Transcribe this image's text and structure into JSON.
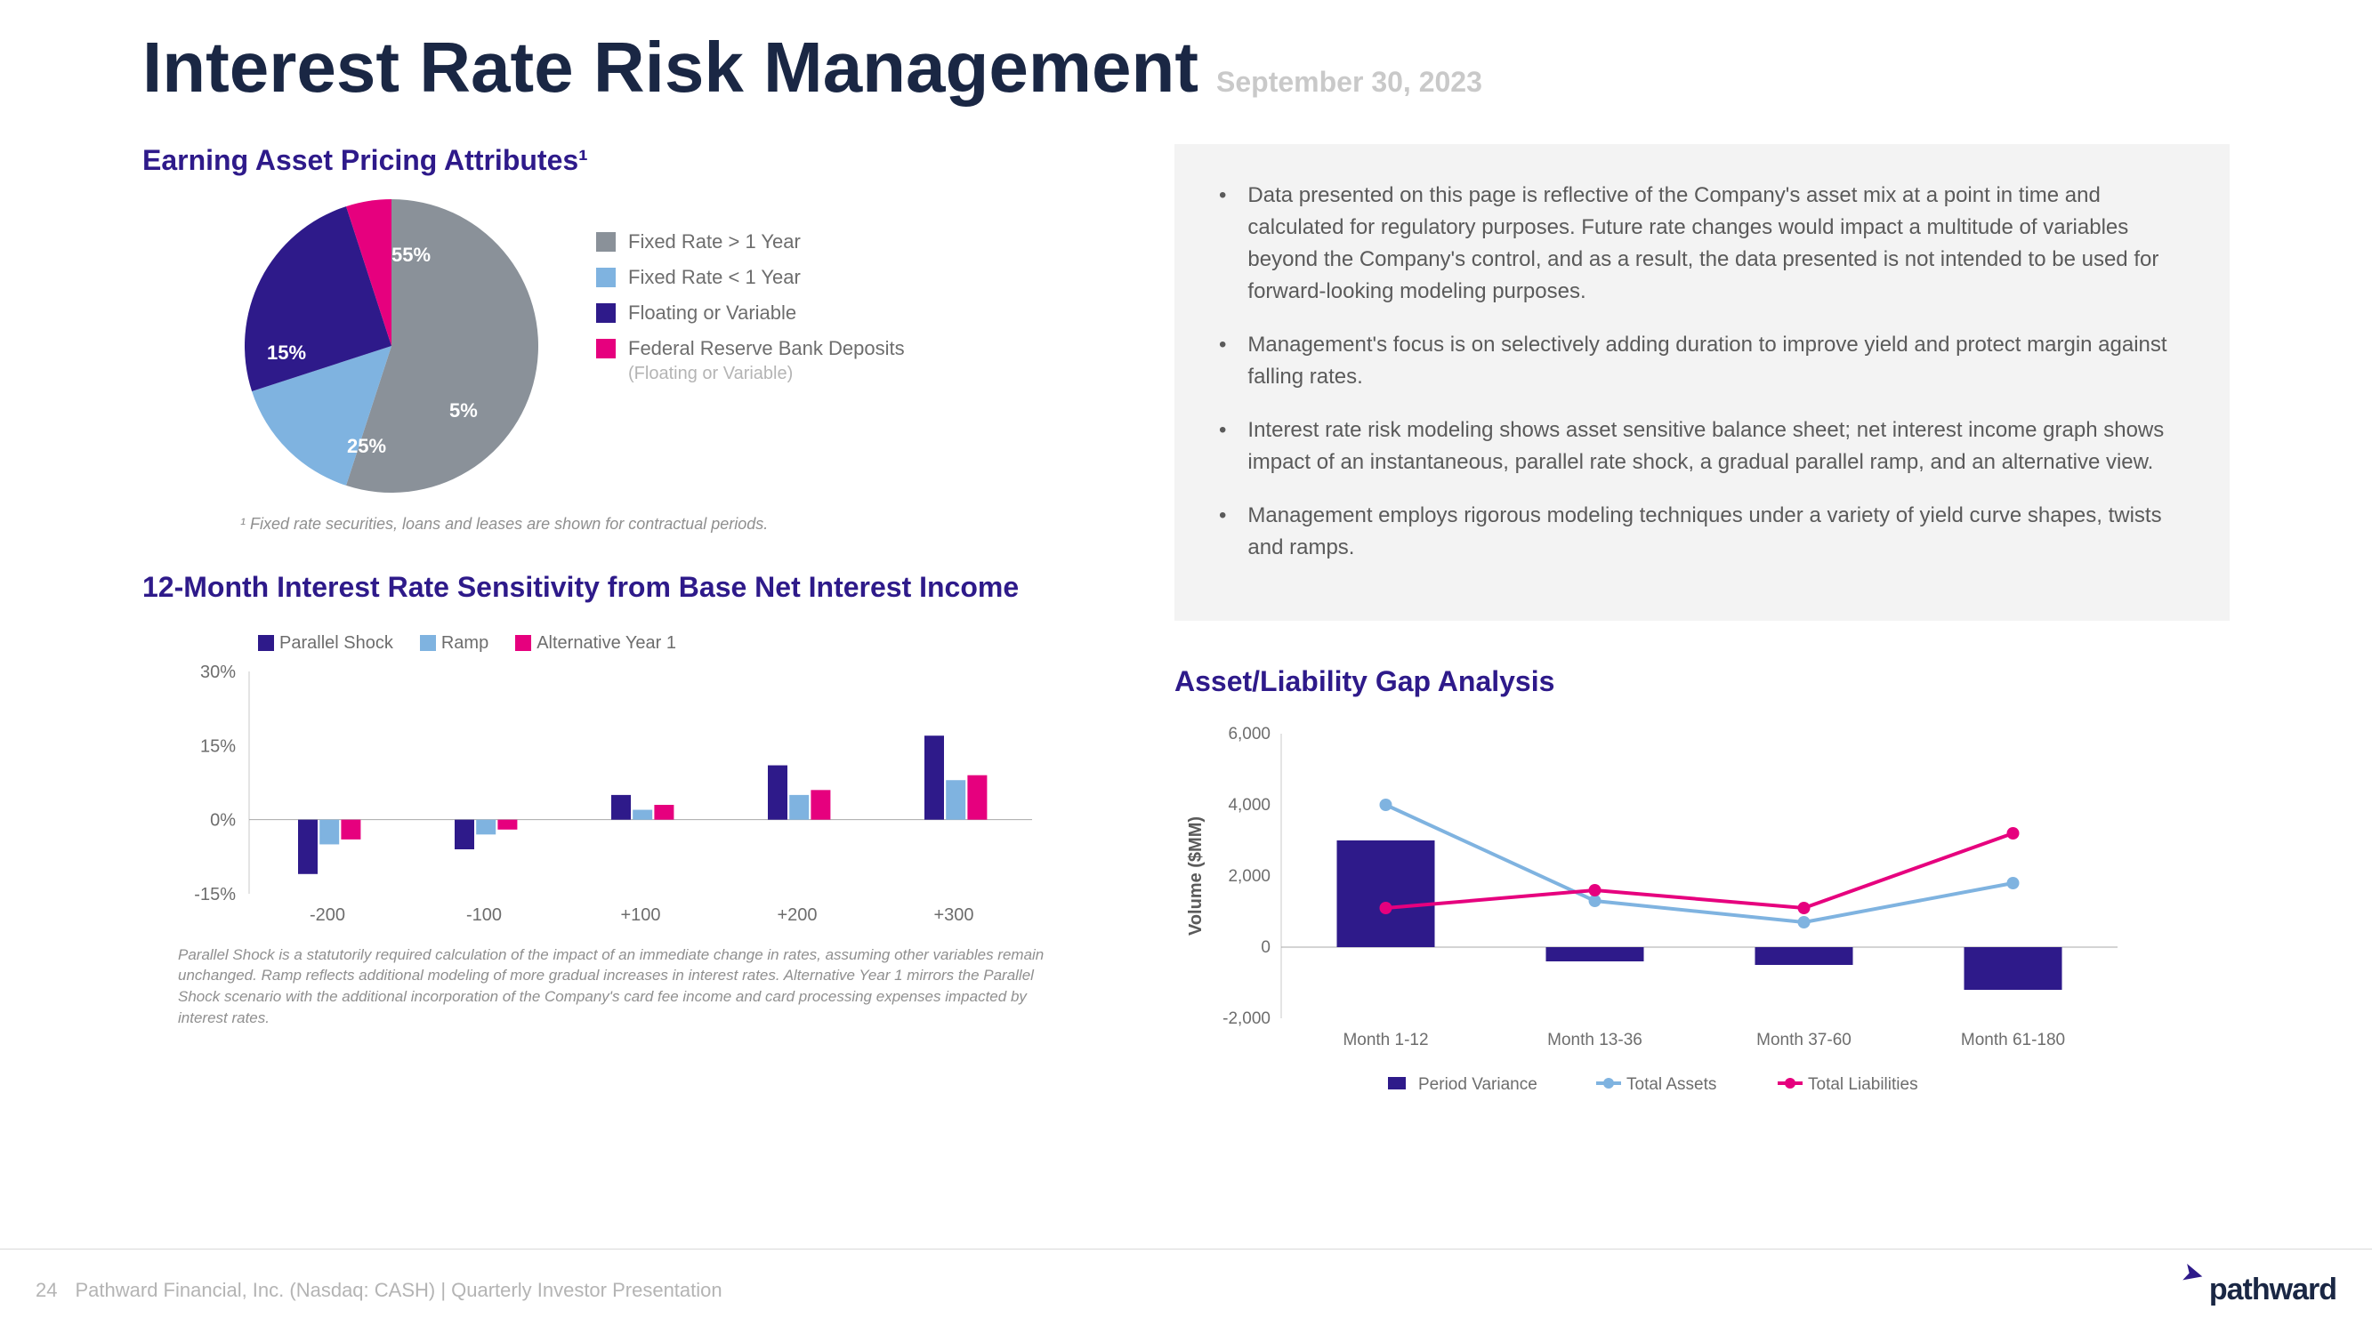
{
  "title": "Interest Rate Risk Management",
  "date": "September 30, 2023",
  "pie_section": {
    "heading": "Earning Asset Pricing Attributes¹",
    "footnote": "¹ Fixed rate securities, loans and leases are shown for contractual periods.",
    "slices": [
      {
        "label": "Fixed Rate > 1 Year",
        "value": 55,
        "color": "#8a9199"
      },
      {
        "label": "Fixed Rate < 1 Year",
        "value": 15,
        "color": "#7fb3e0"
      },
      {
        "label": "Floating or Variable",
        "value": 25,
        "color": "#2e1a8a"
      },
      {
        "label": "Federal Reserve Bank Deposits",
        "sub": "(Floating or Variable)",
        "value": 5,
        "color": "#e6007e"
      }
    ]
  },
  "bullets": [
    "Data presented on this page is reflective of the Company's asset mix at a point in time and calculated for regulatory purposes. Future rate changes would impact a multitude of variables beyond the Company's control, and as a result, the data presented is not intended to be used for forward-looking modeling purposes.",
    "Management's focus is on selectively adding duration to improve yield and protect margin against falling rates.",
    "Interest rate risk modeling shows asset sensitive balance sheet; net interest income graph shows impact of an instantaneous, parallel rate shock, a gradual parallel ramp, and an alternative view.",
    "Management employs rigorous modeling techniques under a variety of yield curve shapes, twists and ramps."
  ],
  "bar_section": {
    "heading": "12-Month Interest Rate Sensitivity from Base Net Interest Income",
    "legend": [
      "Parallel Shock",
      "Ramp",
      "Alternative Year 1"
    ],
    "colors": [
      "#2e1a8a",
      "#7fb3e0",
      "#e6007e"
    ],
    "categories": [
      "-200",
      "-100",
      "+100",
      "+200",
      "+300"
    ],
    "ylabels": [
      "30%",
      "15%",
      "0%",
      "-15%"
    ],
    "ymin": -15,
    "ymax": 30,
    "series": {
      "ps": [
        -11,
        -6,
        5,
        11,
        17
      ],
      "ramp": [
        -5,
        -3,
        2,
        5,
        8
      ],
      "alt": [
        -4,
        -2,
        3,
        6,
        9
      ]
    },
    "footnote": "Parallel Shock is a statutorily required calculation of the impact of an immediate change in rates, assuming other variables remain unchanged. Ramp reflects additional modeling of more gradual increases in interest rates. Alternative Year 1 mirrors the Parallel Shock scenario with the additional incorporation of the Company's card fee income and card processing expenses impacted by interest rates."
  },
  "gap_section": {
    "heading": "Asset/Liability Gap Analysis",
    "ylabel": "Volume ($MM)",
    "categories": [
      "Month 1-12",
      "Month 13-36",
      "Month 37-60",
      "Month 61-180"
    ],
    "ylabels": [
      "6,000",
      "4,000",
      "2,000",
      "0",
      "-2,000"
    ],
    "ymin": -2000,
    "ymax": 6000,
    "bars": [
      3000,
      -400,
      -500,
      -1200
    ],
    "assets": [
      4000,
      1300,
      700,
      1800
    ],
    "liabilities": [
      1100,
      1600,
      1100,
      3200
    ],
    "bar_color": "#2e1a8a",
    "asset_color": "#7fb3e0",
    "liab_color": "#e6007e",
    "legend": [
      "Period Variance",
      "Total Assets",
      "Total Liabilities"
    ]
  },
  "footer": {
    "page": "24",
    "text": "Pathward Financial, Inc. (Nasdaq: CASH) | Quarterly Investor Presentation",
    "logo": "pathward"
  }
}
